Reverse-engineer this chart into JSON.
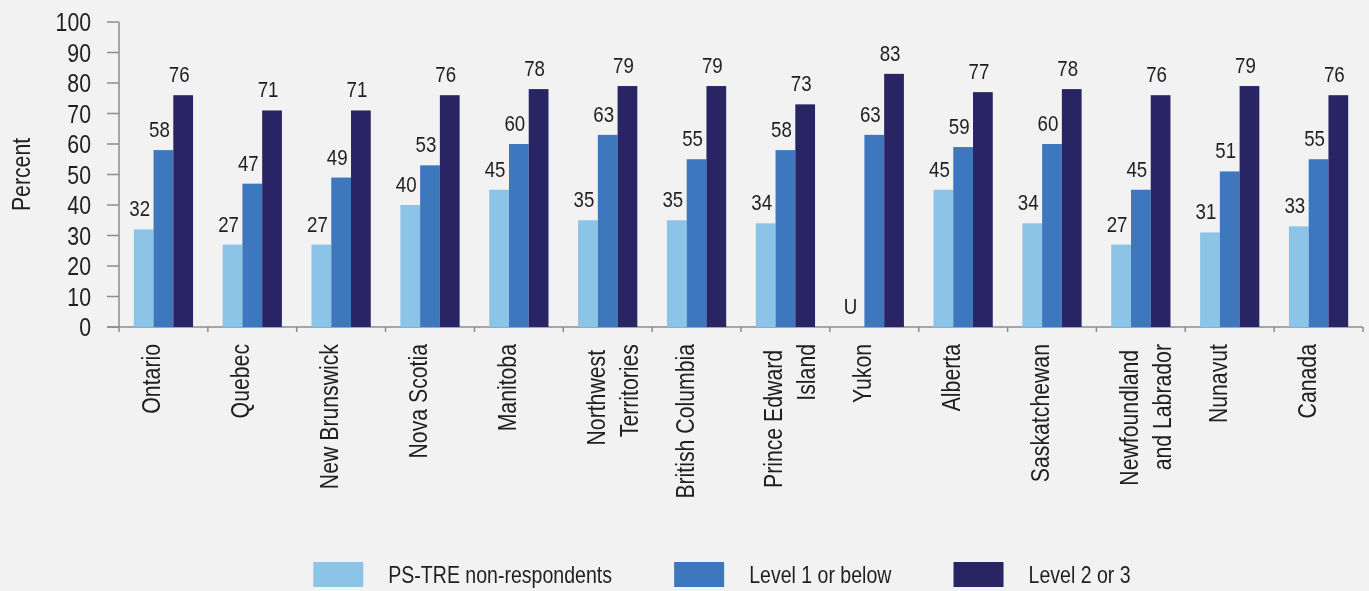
{
  "chart_data": {
    "type": "bar",
    "ylabel": "Percent",
    "ylim": [
      0,
      100
    ],
    "yticks": [
      0,
      10,
      20,
      30,
      40,
      50,
      60,
      70,
      80,
      90,
      100
    ],
    "legend": "bottom",
    "categories": [
      "Ontario",
      "Quebec",
      "New Brunswick",
      "Nova Scotia",
      "Manitoba",
      "Northwest Territories",
      "British Columbia",
      "Prince Edward Island",
      "Yukon",
      "Alberta",
      "Saskatchewan",
      "Newfoundland and Labrador",
      "Nunavut",
      "Canada"
    ],
    "series": [
      {
        "name": "PS-TRE non-respondents",
        "color": "#8cc4e7",
        "values": [
          32,
          27,
          27,
          40,
          45,
          35,
          35,
          34,
          null,
          45,
          34,
          27,
          31,
          33
        ],
        "value_labels": [
          "32",
          "27",
          "27",
          "40",
          "45",
          "35",
          "35",
          "34",
          "U",
          "45",
          "34",
          "27",
          "31",
          "33"
        ]
      },
      {
        "name": "Level 1 or below",
        "color": "#3d77bd",
        "values": [
          58,
          47,
          49,
          53,
          60,
          63,
          55,
          58,
          63,
          59,
          60,
          45,
          51,
          55
        ],
        "value_labels": [
          "58",
          "47",
          "49",
          "53",
          "60",
          "63",
          "55",
          "58",
          "63",
          "59",
          "60",
          "45",
          "51",
          "55"
        ]
      },
      {
        "name": "Level 2 or 3",
        "color": "#292564",
        "values": [
          76,
          71,
          71,
          76,
          78,
          79,
          79,
          73,
          83,
          77,
          78,
          76,
          79,
          76
        ],
        "value_labels": [
          "76",
          "71",
          "71",
          "76",
          "78",
          "79",
          "79",
          "73",
          "83",
          "77",
          "78",
          "76",
          "79",
          "76"
        ]
      }
    ]
  }
}
